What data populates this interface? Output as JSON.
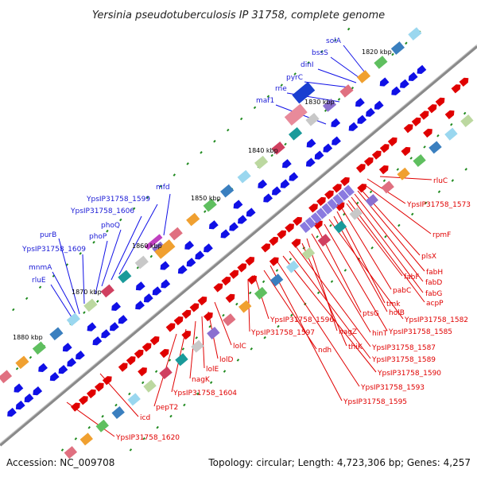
{
  "title": "Yersinia pseudotuberculosis IP 31758, complete genome",
  "footer": {
    "accession": "Accession: NC_009708",
    "summary": "Topology: circular; Length: 4,723,306 bp; Genes: 4,257"
  },
  "colors": {
    "backbone": "#8a8a8a",
    "forward_strand": "#e00000",
    "reverse_strand": "#1010e6",
    "left_label": "#1a1ad6",
    "right_label": "#e00000",
    "tick": "#1f8a1f"
  },
  "scale_labels": [
    "1820 kbp",
    "1830 kbp",
    "1840 kbp",
    "1850 kbp",
    "1860 kbp",
    "1870 kbp",
    "1880 kbp"
  ],
  "left_labels": [
    "solA",
    "bssS",
    "dinI",
    "pyrC",
    "rne",
    "maf1",
    "mfd",
    "YpsIP31758_1599",
    "YpsIP31758_1606",
    "phoQ",
    "phoP",
    "purB",
    "YpsIP31758_1609",
    "mnmA",
    "rluE"
  ],
  "right_labels": [
    "rluC",
    "YpsIP31758_1573",
    "rpmF",
    "plsX",
    "fabH",
    "fabD",
    "fabG",
    "acpP",
    "fabF",
    "pabC",
    "tmk",
    "holB",
    "YpsIP31758_1582",
    "YpsIP31758_1585",
    "ptsG",
    "hinT",
    "nagZ",
    "thiK",
    "YpsIP31758_1587",
    "YpsIP31758_1589",
    "YpsIP31758_1590",
    "YpsIP31758_1593",
    "YpsIP31758_1595",
    "ndh",
    "YpsIP31758_1596",
    "YpsIP31758_1597",
    "lolC",
    "lolD",
    "lolE",
    "nagK",
    "YpsIP31758_1604",
    "pepT2",
    "icd",
    "YpsIP31758_1620"
  ]
}
